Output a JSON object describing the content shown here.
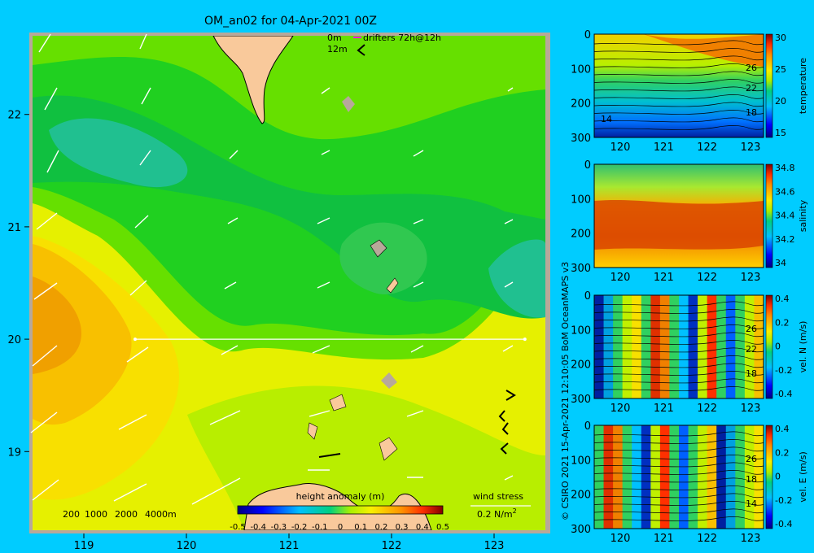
{
  "colors": {
    "background": "#00ccff",
    "land": "#f9c99b",
    "shelf": "#b8a89a",
    "frame": "#b8a89a"
  },
  "chart_data": [
    {
      "type": "heatmap",
      "title": "OM_an02 for 04-Apr-2021 00Z",
      "x_ticks": [
        "119",
        "120",
        "121",
        "122",
        "123"
      ],
      "y_ticks": [
        "19",
        "20",
        "21",
        "22"
      ],
      "xlim": [
        118.5,
        123.5
      ],
      "ylim": [
        18.3,
        22.7
      ],
      "colorbar": {
        "label": "height anomaly (m)",
        "ticks": [
          "-0.5",
          "-0.4",
          "-0.3",
          "-0.2",
          "-0.1",
          "0",
          "0.1",
          "0.2",
          "0.3",
          "0.4",
          "0.5"
        ],
        "range": [
          -0.5,
          0.5
        ]
      },
      "depth_legend": [
        "200",
        "1000",
        "2000",
        "4000m"
      ],
      "wind_legend": {
        "label": "wind stress",
        "value": "0.2 N/m",
        "exp": "2"
      },
      "drifter_legend": {
        "depth_top": "0m",
        "depth_bottom": "12m",
        "label": "drifters 72h@12h"
      },
      "section_line": {
        "lon": [
          119.5,
          123.3
        ],
        "lat": 20.0
      }
    },
    {
      "type": "heatmap",
      "panel": "temperature",
      "ylabel": "temperature",
      "y_ticks": [
        "0",
        "100",
        "200",
        "300"
      ],
      "x_ticks": [
        "120",
        "121",
        "122",
        "123"
      ],
      "cbar_ticks": [
        "30",
        "25",
        "20",
        "15"
      ],
      "contour_labels": [
        "26",
        "22",
        "18",
        "14"
      ]
    },
    {
      "type": "heatmap",
      "panel": "salinity",
      "ylabel": "salinity",
      "y_ticks": [
        "0",
        "100",
        "200",
        "300"
      ],
      "x_ticks": [
        "120",
        "121",
        "122",
        "123"
      ],
      "cbar_ticks": [
        "34.8",
        "34.6",
        "34.4",
        "34.2",
        "34"
      ]
    },
    {
      "type": "heatmap",
      "panel": "vel-n",
      "ylabel": "vel. N (m/s)",
      "y_ticks": [
        "0",
        "100",
        "200",
        "300"
      ],
      "x_ticks": [
        "120",
        "121",
        "122",
        "123"
      ],
      "cbar_ticks": [
        "0.4",
        "0.2",
        "0",
        "-0.2",
        "-0.4"
      ],
      "contour_labels": [
        "26",
        "22",
        "18"
      ]
    },
    {
      "type": "heatmap",
      "panel": "vel-e",
      "ylabel": "vel. E (m/s)",
      "y_ticks": [
        "0",
        "100",
        "200",
        "300"
      ],
      "x_ticks": [
        "120",
        "121",
        "122",
        "123"
      ],
      "cbar_ticks": [
        "0.4",
        "0.2",
        "0",
        "-0.2",
        "-0.4"
      ],
      "contour_labels": [
        "26",
        "18",
        "14"
      ]
    }
  ],
  "credit": "© CSIRO 2021  15-Apr-2021 12:10:05 BoM OceanMAPS v3"
}
